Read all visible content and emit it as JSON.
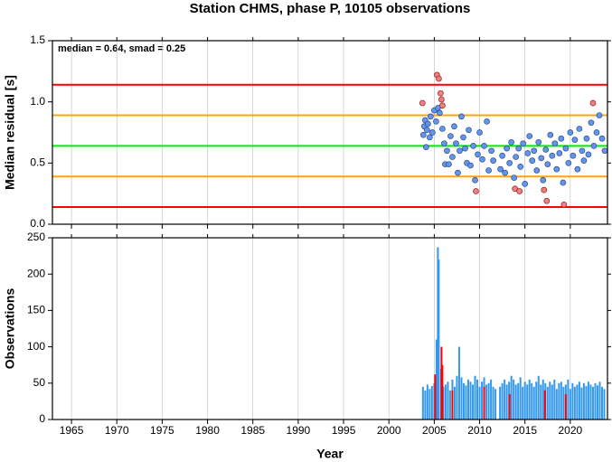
{
  "chart_data": [
    {
      "type": "scatter",
      "title": "Station CHMS, phase P, 10105 observations",
      "ylabel": "Median residual [s]",
      "annotation": "median = 0.64, smad = 0.25",
      "xlim": [
        1962.9,
        2024.1
      ],
      "xticks": [
        1965,
        1970,
        1975,
        1980,
        1985,
        1990,
        1995,
        2000,
        2005,
        2010,
        2015,
        2020
      ],
      "ylim": [
        0,
        1.5
      ],
      "yticks": [
        {
          "value": 0,
          "label": "0.0"
        },
        0.5,
        {
          "value": 1,
          "label": "1.0"
        },
        1.5
      ],
      "grid": "x",
      "hlines": [
        {
          "value": 1.14,
          "color": "#ff0000"
        },
        {
          "value": 0.89,
          "color": "#ffa500"
        },
        {
          "value": 0.64,
          "color": "#00ee00"
        },
        {
          "value": 0.39,
          "color": "#ffa500"
        },
        {
          "value": 0.14,
          "color": "#ff0000"
        }
      ],
      "series": [
        {
          "color": "#6495ed",
          "x": [
            2003.8,
            2003.9,
            2004.0,
            2004.1,
            2004.2,
            2004.3,
            2004.5,
            2004.6,
            2004.8,
            2005.0,
            2005.2,
            2005.4,
            2005.6,
            2005.9,
            2006.1,
            2006.2,
            2006.4,
            2006.6,
            2006.8,
            2007.0,
            2007.2,
            2007.4,
            2007.6,
            2007.8,
            2008.0,
            2008.2,
            2008.4,
            2008.6,
            2008.8,
            2009.0,
            2009.3,
            2009.5,
            2009.8,
            2010.0,
            2010.3,
            2010.5,
            2010.8,
            2011.0,
            2011.3,
            2011.5,
            2012.3,
            2012.5,
            2012.8,
            2013.0,
            2013.3,
            2013.5,
            2013.8,
            2014.0,
            2014.3,
            2014.5,
            2014.8,
            2015.0,
            2015.3,
            2015.5,
            2015.8,
            2016.0,
            2016.3,
            2016.5,
            2016.8,
            2017.0,
            2017.3,
            2017.5,
            2017.8,
            2018.0,
            2018.3,
            2018.5,
            2018.8,
            2019.0,
            2019.2,
            2019.5,
            2019.8,
            2020.0,
            2020.3,
            2020.5,
            2020.8,
            2021.0,
            2021.3,
            2021.5,
            2021.8,
            2022.0,
            2022.3,
            2022.6,
            2022.9,
            2023.2,
            2023.5,
            2023.8
          ],
          "values": [
            0.73,
            0.8,
            0.85,
            0.63,
            0.77,
            0.82,
            0.71,
            0.88,
            0.75,
            0.93,
            0.84,
            0.95,
            0.91,
            0.78,
            0.66,
            0.49,
            0.6,
            0.49,
            0.72,
            0.55,
            0.8,
            0.66,
            0.42,
            0.6,
            0.88,
            0.71,
            0.62,
            0.5,
            0.77,
            0.48,
            0.64,
            0.36,
            0.57,
            0.75,
            0.53,
            0.64,
            0.84,
            0.44,
            0.6,
            0.52,
            0.45,
            0.56,
            0.42,
            0.62,
            0.5,
            0.67,
            0.38,
            0.55,
            0.62,
            0.47,
            0.66,
            0.33,
            0.58,
            0.72,
            0.52,
            0.6,
            0.44,
            0.67,
            0.54,
            0.36,
            0.61,
            0.49,
            0.73,
            0.56,
            0.66,
            0.45,
            0.58,
            0.7,
            0.34,
            0.62,
            0.5,
            0.75,
            0.56,
            0.69,
            0.45,
            0.78,
            0.6,
            0.52,
            0.7,
            0.57,
            0.83,
            0.64,
            0.75,
            0.89,
            0.7,
            0.6
          ]
        },
        {
          "color": "#f08080",
          "x": [
            2003.7,
            2005.3,
            2005.5,
            2005.7,
            2005.8,
            2005.9,
            2009.6,
            2013.9,
            2014.4,
            2017.1,
            2017.4,
            2019.3,
            2022.5
          ],
          "values": [
            0.99,
            1.22,
            1.19,
            1.07,
            1.02,
            0.97,
            0.27,
            0.29,
            0.27,
            0.28,
            0.19,
            0.16,
            0.99
          ]
        }
      ]
    },
    {
      "type": "bar",
      "ylabel": "Observations",
      "xlabel": "Year",
      "xlim": [
        1962.9,
        2024.1
      ],
      "xticks": [
        1965,
        1970,
        1975,
        1980,
        1985,
        1990,
        1995,
        2000,
        2005,
        2010,
        2015,
        2020
      ],
      "ylim": [
        0,
        250
      ],
      "yticks": [
        0,
        50,
        100,
        150,
        200,
        250
      ],
      "grid": "x",
      "series": [
        {
          "color": "#3399ee",
          "x": [
            2003.75,
            2004.0,
            2004.25,
            2004.5,
            2004.75,
            2005.0,
            2005.25,
            2005.4,
            2005.5,
            2005.75,
            2006.0,
            2006.25,
            2006.5,
            2006.75,
            2007.0,
            2007.25,
            2007.5,
            2007.75,
            2008.0,
            2008.25,
            2008.5,
            2008.75,
            2009.0,
            2009.25,
            2009.5,
            2009.75,
            2010.0,
            2010.25,
            2010.5,
            2010.75,
            2011.0,
            2011.25,
            2011.5,
            2011.75,
            2012.25,
            2012.5,
            2012.75,
            2013.0,
            2013.25,
            2013.5,
            2013.75,
            2014.0,
            2014.25,
            2014.5,
            2014.75,
            2015.0,
            2015.25,
            2015.5,
            2015.75,
            2016.0,
            2016.25,
            2016.5,
            2016.75,
            2017.0,
            2017.25,
            2017.5,
            2017.75,
            2018.0,
            2018.25,
            2018.5,
            2018.75,
            2019.0,
            2019.25,
            2019.5,
            2019.75,
            2020.0,
            2020.25,
            2020.5,
            2020.75,
            2021.0,
            2021.25,
            2021.5,
            2021.75,
            2022.0,
            2022.25,
            2022.5,
            2022.75,
            2023.0,
            2023.25,
            2023.5,
            2023.75
          ],
          "values": [
            45,
            40,
            48,
            42,
            46,
            50,
            110,
            237,
            220,
            70,
            45,
            48,
            52,
            40,
            55,
            45,
            60,
            100,
            58,
            50,
            47,
            55,
            52,
            48,
            60,
            55,
            45,
            52,
            58,
            48,
            50,
            55,
            45,
            42,
            45,
            50,
            55,
            48,
            52,
            60,
            55,
            48,
            50,
            58,
            45,
            52,
            48,
            55,
            50,
            45,
            52,
            60,
            48,
            55,
            50,
            45,
            52,
            48,
            55,
            42,
            50,
            52,
            45,
            48,
            55,
            42,
            50,
            45,
            48,
            52,
            44,
            50,
            46,
            52,
            48,
            45,
            50,
            47,
            52,
            45,
            42
          ]
        },
        {
          "color": "#ff0000",
          "x": [
            2005.1,
            2005.8,
            2005.9,
            2007.0,
            2010.5,
            2013.3,
            2017.2,
            2019.5
          ],
          "values": [
            62,
            100,
            75,
            40,
            45,
            35,
            40,
            35
          ]
        }
      ]
    }
  ]
}
